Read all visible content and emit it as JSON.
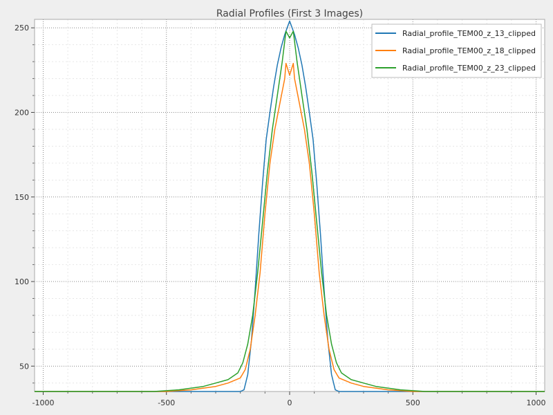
{
  "chart_data": {
    "type": "line",
    "title": "Radial Profiles (First 3 Images)",
    "xlabel": "",
    "ylabel": "",
    "xlim": [
      -1035,
      1035
    ],
    "ylim": [
      35,
      255
    ],
    "x_ticks": [
      -1000,
      -500,
      0,
      500,
      1000
    ],
    "y_ticks": [
      50,
      100,
      150,
      200,
      250
    ],
    "grid": true,
    "legend_position": "top-right",
    "series": [
      {
        "name": "Radial_profile_TEM00_z_13_clipped",
        "color": "#1f77b4",
        "x": [
          -1035,
          -200,
          -185,
          -170,
          -155,
          -140,
          -125,
          -110,
          -95,
          -80,
          -65,
          -50,
          -35,
          -20,
          -10,
          0,
          10,
          20,
          35,
          50,
          65,
          80,
          95,
          110,
          125,
          140,
          155,
          170,
          185,
          200,
          1035
        ],
        "y": [
          35,
          35,
          36,
          45,
          65,
          95,
          128,
          158,
          184,
          200,
          215,
          228,
          238,
          246,
          250,
          254,
          250,
          246,
          238,
          228,
          215,
          200,
          184,
          158,
          128,
          95,
          65,
          45,
          36,
          35,
          35
        ]
      },
      {
        "name": "Radial_profile_TEM00_z_18_clipped",
        "color": "#ff7f0e",
        "x": [
          -1035,
          -500,
          -400,
          -300,
          -250,
          -200,
          -180,
          -160,
          -140,
          -120,
          -100,
          -80,
          -60,
          -40,
          -20,
          -15,
          0,
          15,
          20,
          40,
          60,
          80,
          100,
          120,
          140,
          160,
          180,
          200,
          250,
          300,
          400,
          500,
          1035
        ],
        "y": [
          35,
          35,
          36,
          38,
          40,
          43,
          48,
          60,
          80,
          105,
          140,
          170,
          190,
          205,
          220,
          229,
          222,
          229,
          220,
          205,
          190,
          170,
          140,
          105,
          80,
          60,
          48,
          43,
          40,
          38,
          36,
          35,
          35
        ]
      },
      {
        "name": "Radial_profile_TEM00_z_23_clipped",
        "color": "#2ca02c",
        "x": [
          -1035,
          -550,
          -450,
          -350,
          -300,
          -250,
          -210,
          -190,
          -170,
          -150,
          -130,
          -110,
          -90,
          -70,
          -50,
          -30,
          -15,
          0,
          15,
          30,
          50,
          70,
          90,
          110,
          130,
          150,
          170,
          190,
          210,
          250,
          300,
          350,
          450,
          550,
          1035
        ],
        "y": [
          35,
          35,
          36,
          38,
          40,
          42,
          46,
          52,
          63,
          80,
          105,
          135,
          165,
          190,
          210,
          230,
          248,
          244,
          248,
          230,
          210,
          190,
          165,
          135,
          105,
          80,
          63,
          52,
          46,
          42,
          40,
          38,
          36,
          35,
          35
        ]
      }
    ]
  }
}
